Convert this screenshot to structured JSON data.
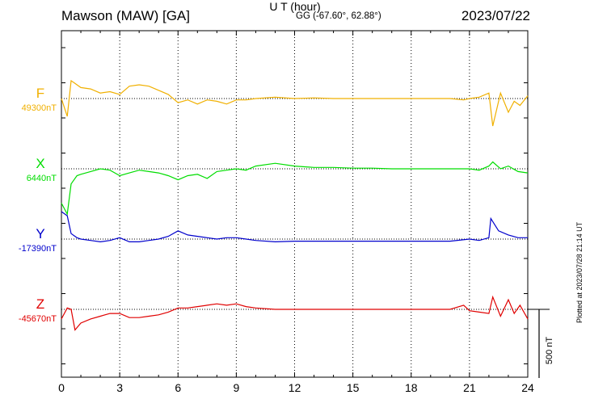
{
  "header": {
    "station": "Mawson (MAW)  [GA]",
    "coords": "GG (-67.60°,  62.88°)",
    "date": "2023/07/22"
  },
  "plotted_note": "Plotted at 2023/07/28 21:14 UT",
  "scale_bar_label": "500 nT",
  "colors": {
    "F": "#f0b000",
    "X": "#00dd00",
    "Y": "#0000cc",
    "Z": "#e00000"
  },
  "chart_data": {
    "type": "line",
    "title": "Mawson (MAW)  [GA]",
    "xlabel": "U T (hour)",
    "xlim": [
      0,
      24
    ],
    "xticks": [
      0,
      3,
      6,
      9,
      12,
      15,
      18,
      21,
      24
    ],
    "x_tick_labels": [
      "0",
      "3",
      "6",
      "9",
      "12",
      "15",
      "18",
      "21",
      "24"
    ],
    "grid": "vertical dotted at every 3 hours",
    "scale_bar_nT": 500,
    "series": [
      {
        "name": "F",
        "baseline_label": "49300nT",
        "baseline": 49300,
        "x": [
          0,
          0.3,
          0.5,
          0.7,
          1,
          1.5,
          2,
          2.5,
          3,
          3.5,
          4,
          4.5,
          5,
          5.5,
          6,
          6.5,
          7,
          7.5,
          8,
          8.5,
          9,
          9.5,
          10,
          11,
          12,
          13,
          14,
          15,
          16,
          17,
          18,
          19,
          20,
          20.7,
          21,
          21.5,
          22,
          22.2,
          22.6,
          23,
          23.3,
          23.6,
          24
        ],
        "y": [
          49300,
          49170,
          49430,
          49410,
          49380,
          49370,
          49340,
          49350,
          49330,
          49390,
          49400,
          49390,
          49360,
          49330,
          49270,
          49290,
          49260,
          49290,
          49280,
          49260,
          49290,
          49290,
          49300,
          49310,
          49300,
          49305,
          49300,
          49300,
          49300,
          49300,
          49300,
          49300,
          49300,
          49290,
          49300,
          49310,
          49340,
          49100,
          49340,
          49200,
          49280,
          49250,
          49320
        ]
      },
      {
        "name": "X",
        "baseline_label": "6440nT",
        "baseline": 6440,
        "x": [
          0,
          0.3,
          0.5,
          0.8,
          1,
          1.5,
          2,
          2.5,
          3,
          3.5,
          4,
          4.5,
          5,
          5.5,
          6,
          6.5,
          7,
          7.5,
          8,
          8.5,
          9,
          9.5,
          10,
          11,
          12,
          13,
          14,
          15,
          16,
          17,
          18,
          19,
          20,
          21,
          21.5,
          22,
          22.2,
          22.6,
          23,
          23.5,
          24
        ],
        "y": [
          6190,
          6110,
          6330,
          6390,
          6400,
          6420,
          6440,
          6430,
          6390,
          6410,
          6430,
          6420,
          6410,
          6390,
          6360,
          6390,
          6400,
          6370,
          6420,
          6430,
          6440,
          6430,
          6460,
          6480,
          6460,
          6450,
          6450,
          6445,
          6445,
          6440,
          6440,
          6440,
          6440,
          6440,
          6430,
          6460,
          6490,
          6440,
          6460,
          6420,
          6410
        ]
      },
      {
        "name": "Y",
        "baseline_label": "-17390nT",
        "baseline": -17390,
        "x": [
          0,
          0.3,
          0.5,
          0.8,
          1,
          1.5,
          2,
          2.5,
          3,
          3.5,
          4,
          4.5,
          5,
          5.5,
          6,
          6.5,
          7,
          7.5,
          8,
          8.5,
          9,
          9.5,
          10,
          11,
          12,
          13,
          14,
          15,
          16,
          17,
          18,
          19,
          20,
          21,
          21.5,
          22,
          22.1,
          22.5,
          23,
          23.5,
          24
        ],
        "y": [
          -17190,
          -17220,
          -17350,
          -17380,
          -17390,
          -17400,
          -17410,
          -17400,
          -17380,
          -17410,
          -17410,
          -17400,
          -17390,
          -17370,
          -17330,
          -17360,
          -17370,
          -17380,
          -17390,
          -17380,
          -17380,
          -17390,
          -17400,
          -17410,
          -17405,
          -17405,
          -17405,
          -17405,
          -17405,
          -17405,
          -17405,
          -17405,
          -17405,
          -17390,
          -17400,
          -17380,
          -17240,
          -17330,
          -17360,
          -17380,
          -17380
        ]
      },
      {
        "name": "Z",
        "baseline_label": "-45670nT",
        "baseline": -45670,
        "x": [
          0,
          0.3,
          0.5,
          0.7,
          1,
          1.5,
          2,
          2.5,
          3,
          3.5,
          4,
          4.5,
          5,
          5.5,
          6,
          6.5,
          7,
          7.5,
          8,
          8.5,
          9,
          9.5,
          10,
          11,
          12,
          13,
          14,
          15,
          16,
          17,
          18,
          19,
          20,
          20.7,
          21,
          21.5,
          22,
          22.2,
          22.6,
          23,
          23.3,
          23.6,
          24
        ],
        "y": [
          -45740,
          -45660,
          -45670,
          -45820,
          -45770,
          -45740,
          -45720,
          -45700,
          -45700,
          -45730,
          -45730,
          -45720,
          -45710,
          -45690,
          -45660,
          -45660,
          -45650,
          -45640,
          -45630,
          -45640,
          -45630,
          -45650,
          -45660,
          -45670,
          -45670,
          -45670,
          -45670,
          -45670,
          -45670,
          -45670,
          -45670,
          -45670,
          -45670,
          -45640,
          -45680,
          -45690,
          -45700,
          -45580,
          -45720,
          -45600,
          -45700,
          -45640,
          -45740
        ]
      }
    ]
  }
}
